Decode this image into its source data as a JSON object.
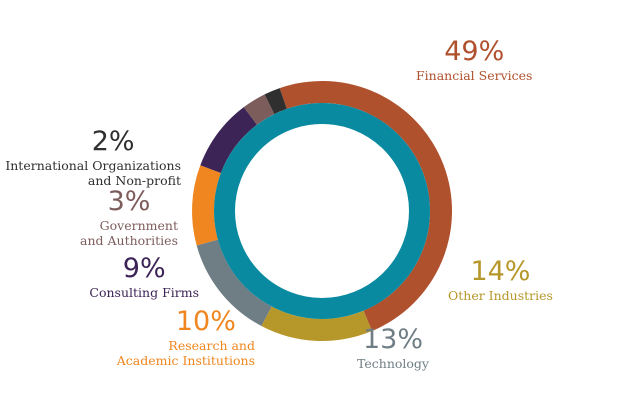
{
  "chart_data": {
    "type": "pie",
    "style": "donut",
    "inner_ring_color": "#0a8aa0",
    "slices": [
      {
        "percent_label": "49%",
        "value": 49,
        "label_lines": [
          "Financial Services"
        ],
        "color": "#b0512e"
      },
      {
        "percent_label": "14%",
        "value": 14,
        "label_lines": [
          "Other Industries"
        ],
        "color": "#b6972a"
      },
      {
        "percent_label": "13%",
        "value": 13,
        "label_lines": [
          "Technology"
        ],
        "color": "#6f7e85"
      },
      {
        "percent_label": "10%",
        "value": 10,
        "label_lines": [
          "Research and",
          "Academic Institutions"
        ],
        "color": "#f0861f"
      },
      {
        "percent_label": "9%",
        "value": 9,
        "label_lines": [
          "Consulting Firms"
        ],
        "color": "#3c2456"
      },
      {
        "percent_label": "3%",
        "value": 3,
        "label_lines": [
          "Government",
          "and Authorities"
        ],
        "color": "#7d5c5c"
      },
      {
        "percent_label": "2%",
        "value": 2,
        "label_lines": [
          "International Organizations",
          "and Non-profit"
        ],
        "color": "#2f2f2f"
      }
    ]
  }
}
